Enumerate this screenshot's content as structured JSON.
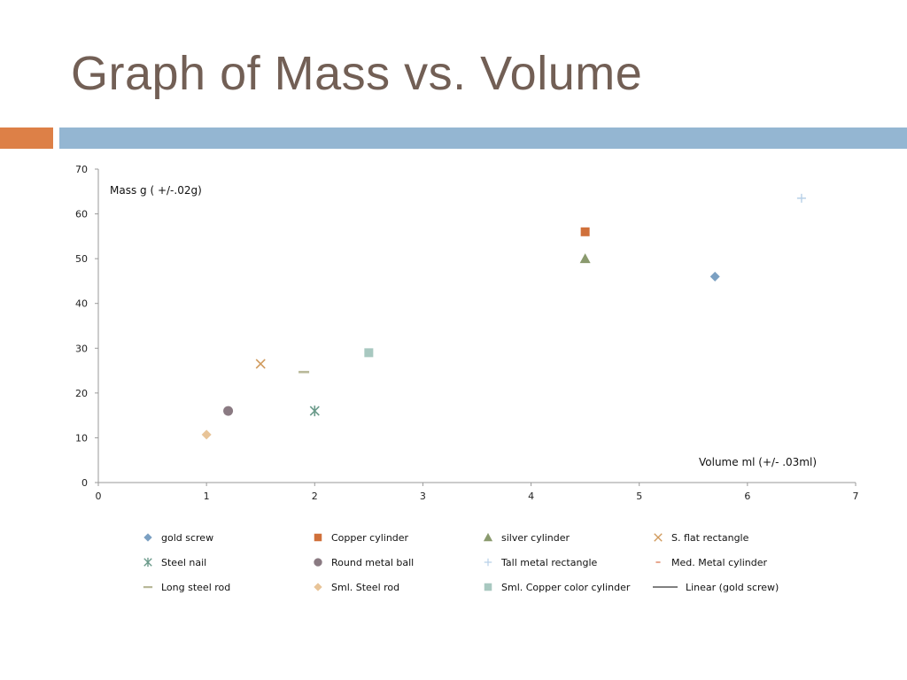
{
  "slide": {
    "title": "Graph of Mass vs. Volume",
    "accent_color": "#dd8047",
    "band_color": "#94b6d2",
    "title_color": "#725f55"
  },
  "chart_data": {
    "type": "scatter",
    "ylabel": "Mass g ( +/-.02g)",
    "xlabel": "Volume ml (+/- .03ml)",
    "xlim": [
      0,
      7
    ],
    "ylim": [
      0,
      70
    ],
    "xticks": [
      0,
      1,
      2,
      3,
      4,
      5,
      6,
      7
    ],
    "yticks": [
      0,
      10,
      20,
      30,
      40,
      50,
      60,
      70
    ],
    "grid": false,
    "legend_position": "bottom",
    "series": [
      {
        "name": "gold screw",
        "marker": "diamond",
        "color": "#7ba0c2",
        "points": [
          [
            5.7,
            46
          ]
        ]
      },
      {
        "name": "Copper cylinder",
        "marker": "square",
        "color": "#d0703a",
        "points": [
          [
            4.5,
            56
          ]
        ]
      },
      {
        "name": "silver cylinder",
        "marker": "triangle",
        "color": "#8a9a6e",
        "points": [
          [
            4.5,
            50
          ]
        ]
      },
      {
        "name": "S. flat rectangle",
        "marker": "x",
        "color": "#d09a5c",
        "points": [
          [
            1.5,
            26.5
          ]
        ]
      },
      {
        "name": "Steel nail",
        "marker": "star",
        "color": "#6a9a8a",
        "points": [
          [
            2.0,
            16
          ]
        ]
      },
      {
        "name": "Round metal ball",
        "marker": "circle",
        "color": "#8a7a82",
        "points": [
          [
            1.2,
            16
          ]
        ]
      },
      {
        "name": "Tall metal rectangle",
        "marker": "plus",
        "color": "#b8d0e8",
        "points": [
          [
            6.5,
            63.5
          ]
        ]
      },
      {
        "name": "Med. Metal cylinder",
        "marker": "shortdash",
        "color": "#e8a890",
        "points": []
      },
      {
        "name": "Long steel rod",
        "marker": "dash",
        "color": "#b8b898",
        "points": [
          [
            1.9,
            24.7
          ]
        ]
      },
      {
        "name": "Sml. Steel rod",
        "marker": "diamond",
        "color": "#e8c498",
        "points": [
          [
            1.0,
            10.7
          ]
        ]
      },
      {
        "name": "Sml. Copper color cylinder",
        "marker": "square",
        "color": "#a8c8c0",
        "points": [
          [
            2.5,
            29
          ]
        ]
      },
      {
        "name": "Linear (gold screw)",
        "marker": "line",
        "color": "#000000",
        "points": []
      }
    ]
  }
}
